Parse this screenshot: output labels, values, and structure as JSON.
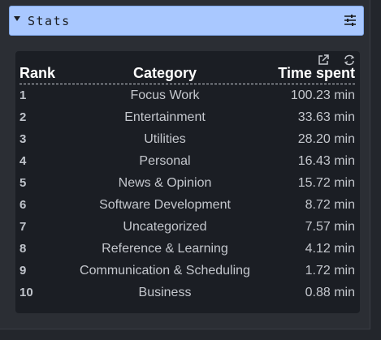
{
  "header": {
    "title": "Stats",
    "caret_icon": "caret-down-icon",
    "settings_icon": "sliders-icon"
  },
  "card": {
    "open_icon": "external-link-icon",
    "refresh_icon": "refresh-icon"
  },
  "table": {
    "columns": {
      "rank": "Rank",
      "category": "Category",
      "time": "Time spent"
    },
    "rows": [
      {
        "rank": "1",
        "category": "Focus Work",
        "time": "100.23 min"
      },
      {
        "rank": "2",
        "category": "Entertainment",
        "time": "33.63 min"
      },
      {
        "rank": "3",
        "category": "Utilities",
        "time": "28.20 min"
      },
      {
        "rank": "4",
        "category": "Personal",
        "time": "16.43 min"
      },
      {
        "rank": "5",
        "category": "News & Opinion",
        "time": "15.72 min"
      },
      {
        "rank": "6",
        "category": "Software Development",
        "time": "8.72 min"
      },
      {
        "rank": "7",
        "category": "Uncategorized",
        "time": "7.57 min"
      },
      {
        "rank": "8",
        "category": "Reference & Learning",
        "time": "4.12 min"
      },
      {
        "rank": "9",
        "category": "Communication & Scheduling",
        "time": "1.72 min"
      },
      {
        "rank": "10",
        "category": "Business",
        "time": "0.88 min"
      }
    ]
  },
  "colors": {
    "header_background": "#a9c8ff",
    "card_background": "#1b1e24",
    "page_background": "#23262c"
  }
}
